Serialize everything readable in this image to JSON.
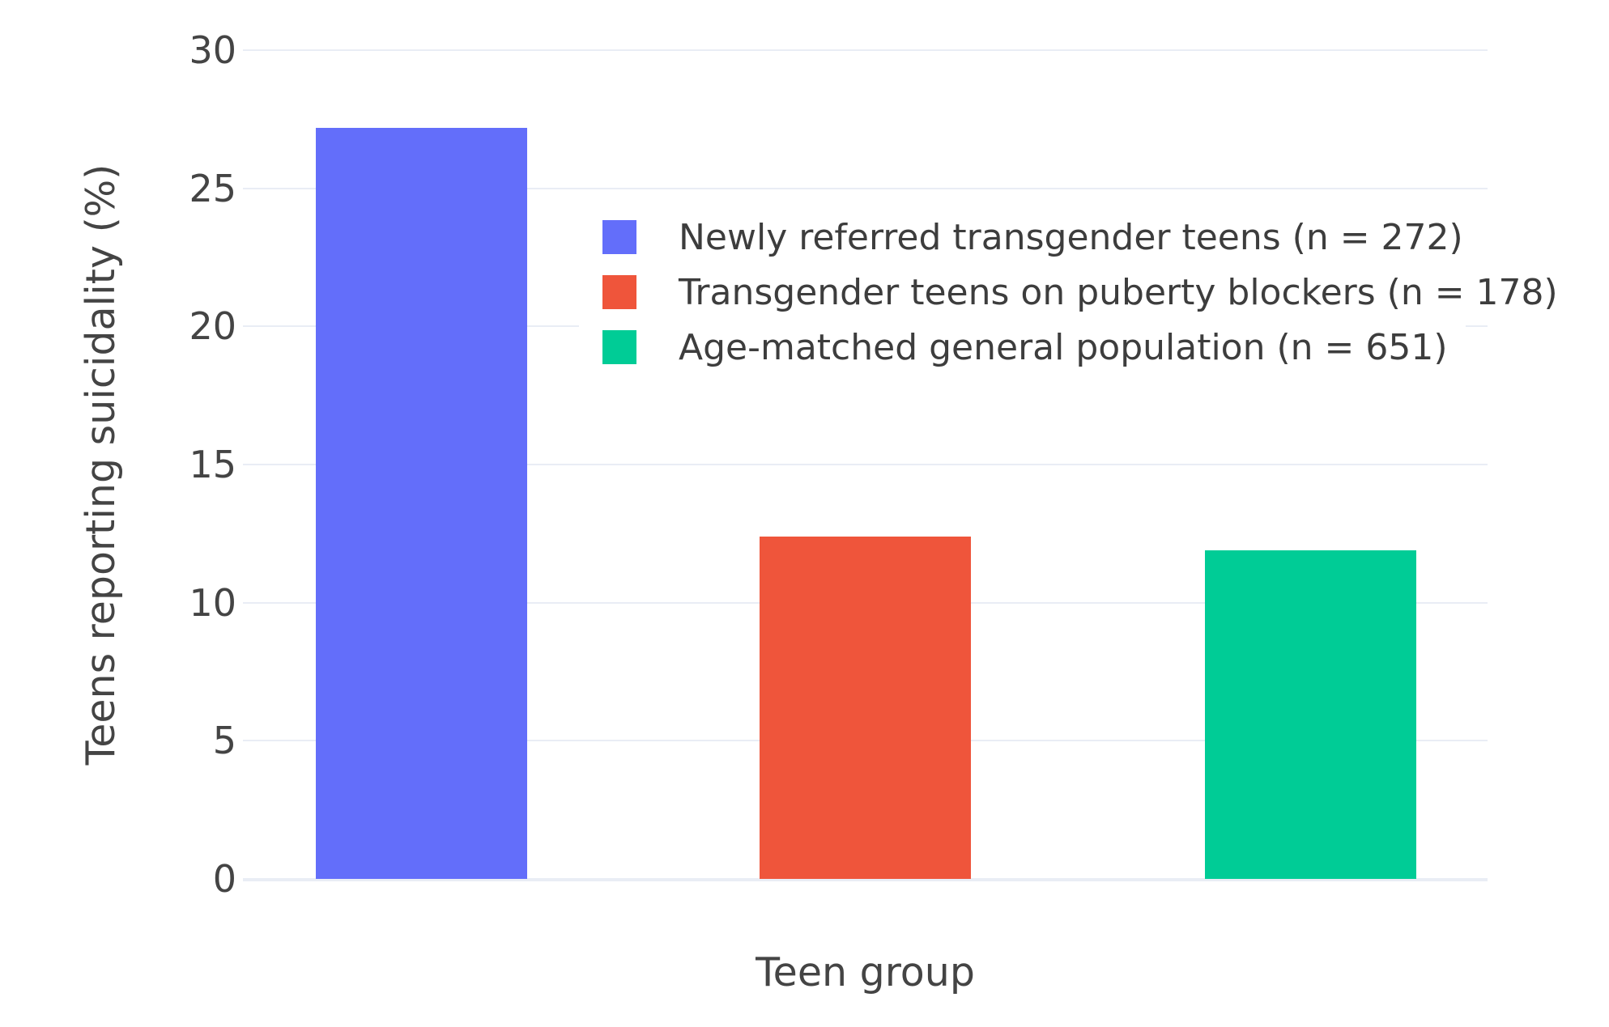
{
  "chart_data": {
    "type": "bar",
    "title": "",
    "xlabel": "Teen group",
    "ylabel": "Teens reporting suicidality (%)",
    "ylim": [
      0,
      30
    ],
    "yticks": [
      0,
      5,
      10,
      15,
      20,
      25,
      30
    ],
    "grid": true,
    "legend_position": "inside-top-center",
    "categories": [
      "Newly referred transgender teens",
      "Transgender teens on puberty blockers",
      "Age-matched general population"
    ],
    "series": [
      {
        "name": "Newly referred transgender teens (n = 272)",
        "value": 27.2,
        "color": "#636EFA"
      },
      {
        "name": "Transgender teens on puberty blockers (n = 178)",
        "value": 12.4,
        "color": "#EF553B"
      },
      {
        "name": "Age-matched general population (n = 651)",
        "value": 11.9,
        "color": "#00CC96"
      }
    ],
    "colors": {
      "background": "#ffffff",
      "gridline": "#e9edf5",
      "text": "#444444"
    }
  }
}
